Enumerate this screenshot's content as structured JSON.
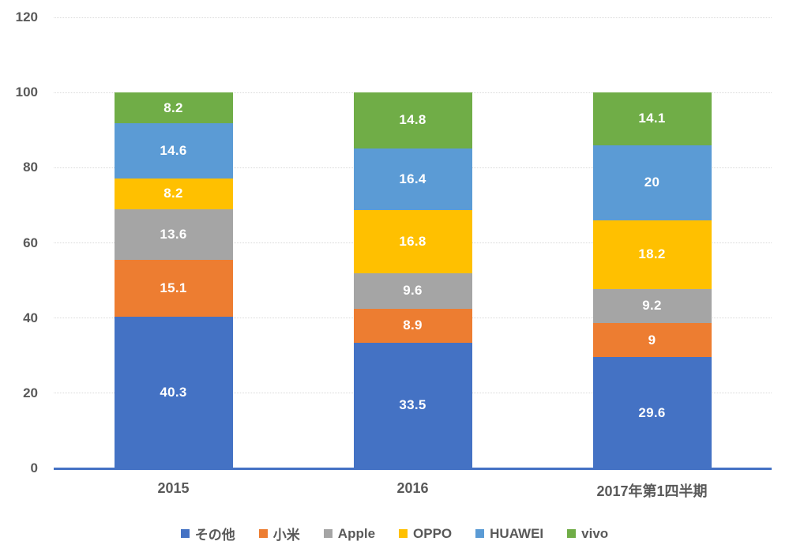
{
  "chart_data": {
    "type": "bar",
    "stacked": true,
    "title": "",
    "xlabel": "",
    "ylabel": "",
    "categories": [
      "2015",
      "2016",
      "2017年第1四半期"
    ],
    "series": [
      {
        "name": "その他",
        "color": "#4472C4",
        "values": [
          40.3,
          33.5,
          29.6
        ]
      },
      {
        "name": "小米",
        "color": "#ED7D31",
        "values": [
          15.1,
          8.9,
          9
        ]
      },
      {
        "name": "Apple",
        "color": "#A5A5A5",
        "values": [
          13.6,
          9.6,
          9.2
        ]
      },
      {
        "name": "OPPO",
        "color": "#FFC000",
        "values": [
          8.2,
          16.8,
          18.2
        ]
      },
      {
        "name": "HUAWEI",
        "color": "#5B9BD5",
        "values": [
          14.6,
          16.4,
          20
        ]
      },
      {
        "name": "vivo",
        "color": "#70AD47",
        "values": [
          8.2,
          14.8,
          14.1
        ]
      }
    ],
    "ylim": [
      0,
      120
    ],
    "yticks": [
      0,
      20,
      40,
      60,
      80,
      100,
      120
    ],
    "grid": true,
    "legend_position": "bottom",
    "value_labels": "inside-center"
  },
  "style": {
    "background": "#FFFFFF",
    "axis_line_color": "#4472C4",
    "gridline_color": "#D9D9D9",
    "tick_label_color": "#595959",
    "value_label_color": "#FFFFFF"
  }
}
